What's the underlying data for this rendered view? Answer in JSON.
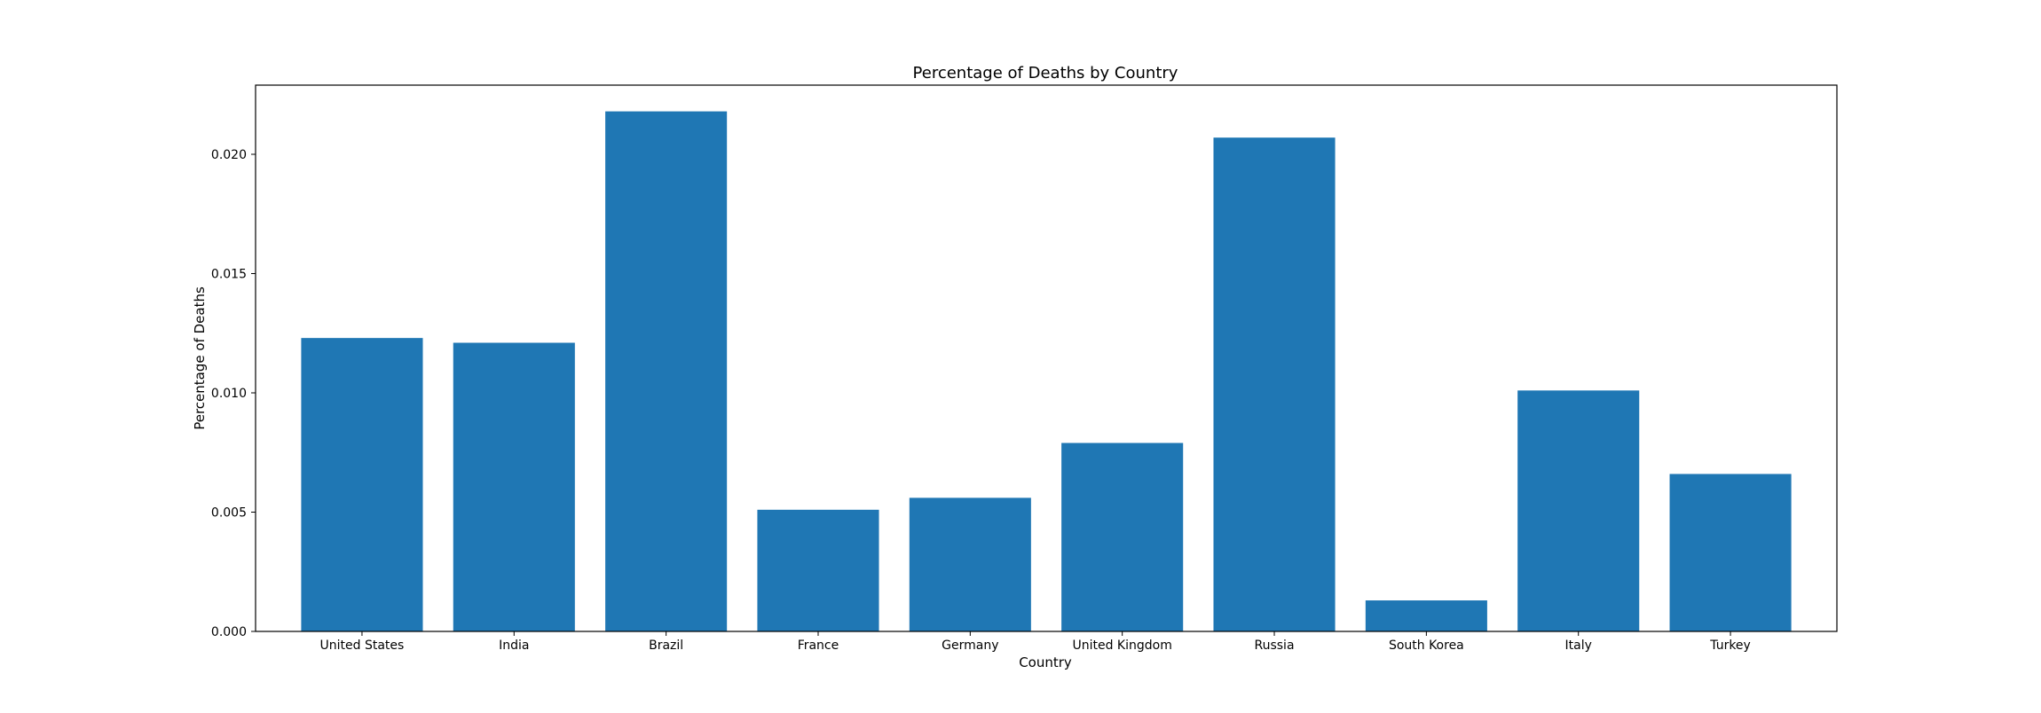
{
  "chart_data": {
    "type": "bar",
    "title": "Percentage of Deaths by Country",
    "xlabel": "Country",
    "ylabel": "Percentage of Deaths",
    "categories": [
      "United States",
      "India",
      "Brazil",
      "France",
      "Germany",
      "United Kingdom",
      "Russia",
      "South Korea",
      "Italy",
      "Turkey"
    ],
    "values": [
      0.0123,
      0.0121,
      0.0218,
      0.0051,
      0.0056,
      0.0079,
      0.0207,
      0.0013,
      0.0101,
      0.0066
    ],
    "ylim": [
      0,
      0.0229
    ],
    "yticks": [
      0.0,
      0.005,
      0.01,
      0.015,
      0.02
    ],
    "ytick_labels": [
      "0.000",
      "0.005",
      "0.010",
      "0.015",
      "0.020"
    ],
    "grid": false,
    "legend": "none",
    "bar_color": "#1f77b4"
  }
}
